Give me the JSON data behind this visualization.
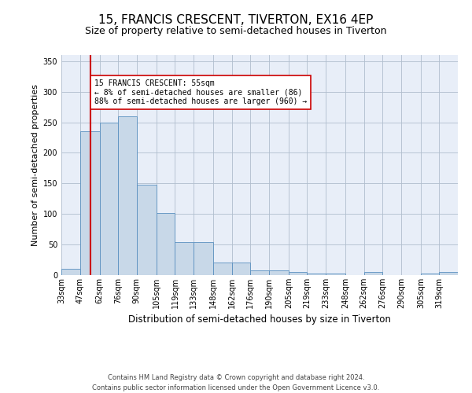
{
  "title": "15, FRANCIS CRESCENT, TIVERTON, EX16 4EP",
  "subtitle": "Size of property relative to semi-detached houses in Tiverton",
  "xlabel": "Distribution of semi-detached houses by size in Tiverton",
  "ylabel": "Number of semi-detached properties",
  "bin_labels": [
    "33sqm",
    "47sqm",
    "62sqm",
    "76sqm",
    "90sqm",
    "105sqm",
    "119sqm",
    "133sqm",
    "148sqm",
    "162sqm",
    "176sqm",
    "190sqm",
    "205sqm",
    "219sqm",
    "233sqm",
    "248sqm",
    "262sqm",
    "276sqm",
    "290sqm",
    "305sqm",
    "319sqm"
  ],
  "bin_edges": [
    33,
    47,
    62,
    76,
    90,
    105,
    119,
    133,
    148,
    162,
    176,
    190,
    205,
    219,
    233,
    248,
    262,
    276,
    290,
    305,
    319,
    333
  ],
  "bar_heights": [
    10,
    235,
    250,
    260,
    148,
    101,
    54,
    54,
    20,
    20,
    8,
    8,
    5,
    3,
    3,
    0,
    5,
    0,
    0,
    3,
    5
  ],
  "bar_color": "#c8d8e8",
  "bar_edge_color": "#5a90c0",
  "property_size": 55,
  "property_label": "15 FRANCIS CRESCENT: 55sqm",
  "pct_smaller": 8,
  "n_smaller": 86,
  "pct_larger": 88,
  "n_larger": 960,
  "vline_color": "#cc0000",
  "ylim": [
    0,
    360
  ],
  "yticks": [
    0,
    50,
    100,
    150,
    200,
    250,
    300,
    350
  ],
  "plot_bg_color": "#e8eef8",
  "grid_color": "#b0bece",
  "footer": "Contains HM Land Registry data © Crown copyright and database right 2024.\nContains public sector information licensed under the Open Government Licence v3.0.",
  "title_fontsize": 11,
  "subtitle_fontsize": 9,
  "xlabel_fontsize": 8.5,
  "ylabel_fontsize": 8,
  "tick_fontsize": 7,
  "footer_fontsize": 6
}
